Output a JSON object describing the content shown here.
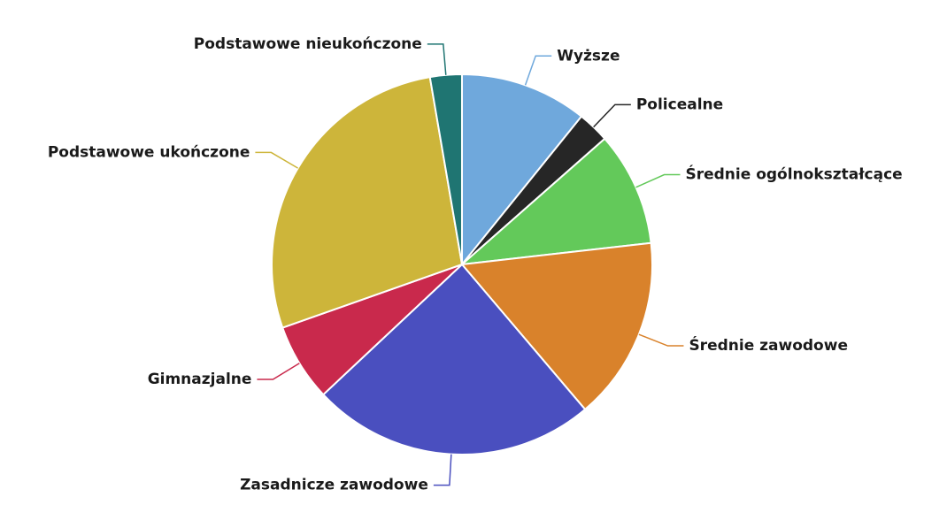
{
  "chart_data": {
    "type": "pie",
    "categories": [
      "Wyższe",
      "Policealne",
      "Średnie ogólnokształcące",
      "Średnie zawodowe",
      "Zasadnicze zawodowe",
      "Gimnazjalne",
      "Podstawowe ukończone",
      "Podstawowe nieukończone"
    ],
    "values": [
      10.8,
      2.7,
      9.7,
      15.6,
      24.2,
      6.6,
      27.7,
      2.7
    ],
    "colors": [
      "#6fa8dc",
      "#262626",
      "#63c95a",
      "#d9822b",
      "#4a4fbf",
      "#c9294c",
      "#cdb53a",
      "#1f7572"
    ]
  }
}
